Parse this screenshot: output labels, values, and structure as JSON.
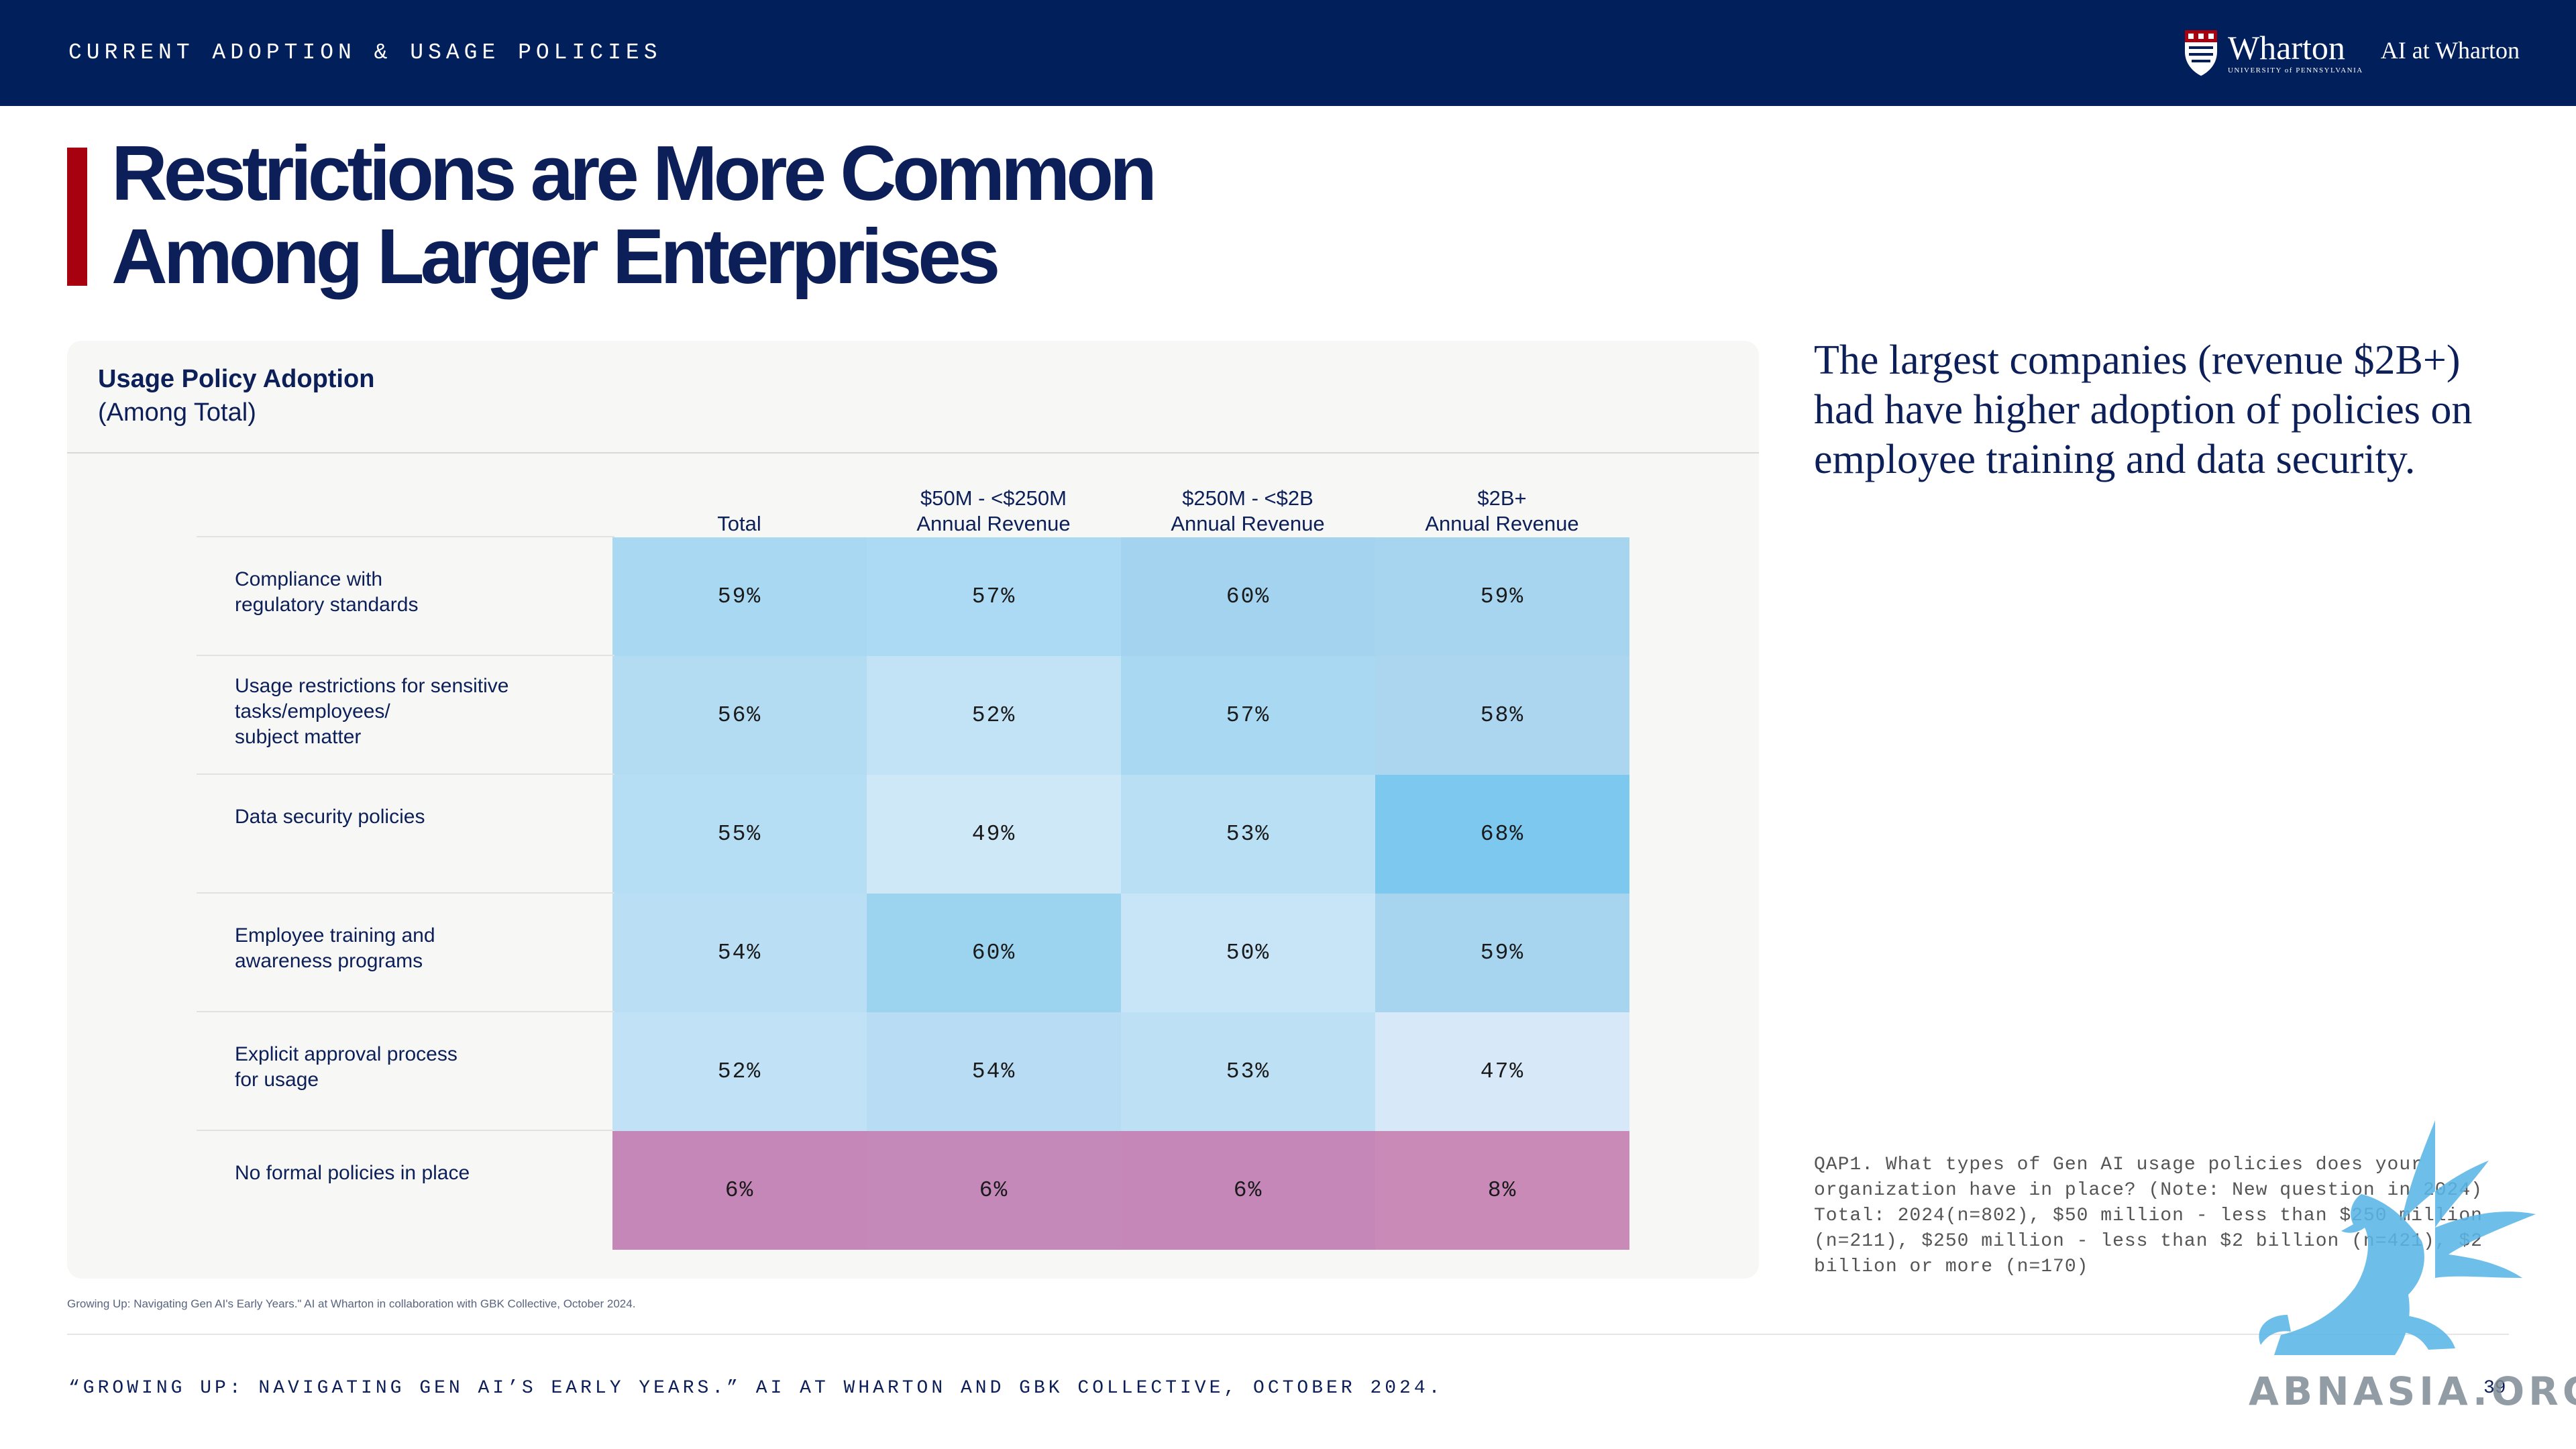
{
  "header": {
    "section_title": "CURRENT ADOPTION & USAGE POLICIES",
    "brand_name": "Wharton",
    "brand_subtitle": "UNIVERSITY of PENNSYLVANIA",
    "brand_tag": "AI at Wharton"
  },
  "title": {
    "line1": "Restrictions are More Common",
    "line2": "Among Larger Enterprises"
  },
  "card": {
    "title": "Usage Policy Adoption",
    "subtitle": "(Among Total)",
    "columns": [
      {
        "line1": "",
        "line2": "Total"
      },
      {
        "line1": "$50M - <$250M",
        "line2": "Annual Revenue"
      },
      {
        "line1": "$250M - <$2B",
        "line2": "Annual Revenue"
      },
      {
        "line1": "$2B+",
        "line2": "Annual Revenue"
      }
    ],
    "rows": [
      {
        "label": [
          "Compliance with",
          "regulatory standards"
        ],
        "values": [
          "59%",
          "57%",
          "60%",
          "59%"
        ]
      },
      {
        "label": [
          "Usage restrictions for sensitive",
          "tasks/employees/",
          "subject matter"
        ],
        "values": [
          "56%",
          "52%",
          "57%",
          "58%"
        ]
      },
      {
        "label": [
          "Data security policies"
        ],
        "values": [
          "55%",
          "49%",
          "53%",
          "68%"
        ]
      },
      {
        "label": [
          "Employee training and",
          "awareness programs"
        ],
        "values": [
          "54%",
          "60%",
          "50%",
          "59%"
        ]
      },
      {
        "label": [
          "Explicit approval process",
          "for usage"
        ],
        "values": [
          "52%",
          "54%",
          "53%",
          "47%"
        ]
      },
      {
        "label": [
          "No formal policies in place"
        ],
        "values": [
          "6%",
          "6%",
          "6%",
          "8%"
        ]
      }
    ],
    "cell_colors": [
      [
        "#a9d8f2",
        "#acdaf4",
        "#a3d3ef",
        "#a7d5f0"
      ],
      [
        "#b3dcf3",
        "#c2e3f6",
        "#a9d8f2",
        "#acd6f0"
      ],
      [
        "#b5ddf4",
        "#cfe8f8",
        "#b8dff4",
        "#7cc8ee"
      ],
      [
        "#badff5",
        "#9cd3ee",
        "#c7e5f7",
        "#a7d5f0"
      ],
      [
        "#c1e2f6",
        "#b8dcf3",
        "#bde0f4",
        "#d7e8f8"
      ],
      [
        "#c487b8",
        "#c589b9",
        "#c487b8",
        "#c98ab8"
      ]
    ],
    "source": "Growing Up: Navigating Gen AI's Early Years.\" AI at Wharton in collaboration with GBK Collective, October 2024."
  },
  "insight": "The largest companies (revenue $2B+) had have higher adoption of policies on employee training and data security.",
  "footnote": "QAP1. What types of Gen AI usage policies does your organization have in place? (Note: New question in 2024) Total: 2024(n=802), $50 million - less than $250 million (n=211), $250 million - less than $2 billion (n=421), $2 billion or more (n=170)",
  "footer": {
    "citation": "“GROWING UP: NAVIGATING GEN AI’S EARLY YEARS.” AI AT WHARTON AND GBK COLLECTIVE, OCTOBER 2024.",
    "page_number": "39"
  },
  "watermark": {
    "text": "ABNASIA.ORG",
    "figure_icon": "griffin-icon"
  },
  "colors": {
    "header_bg": "#011f5b",
    "accent_red": "#a7000f",
    "navy_text": "#0c1f58"
  }
}
